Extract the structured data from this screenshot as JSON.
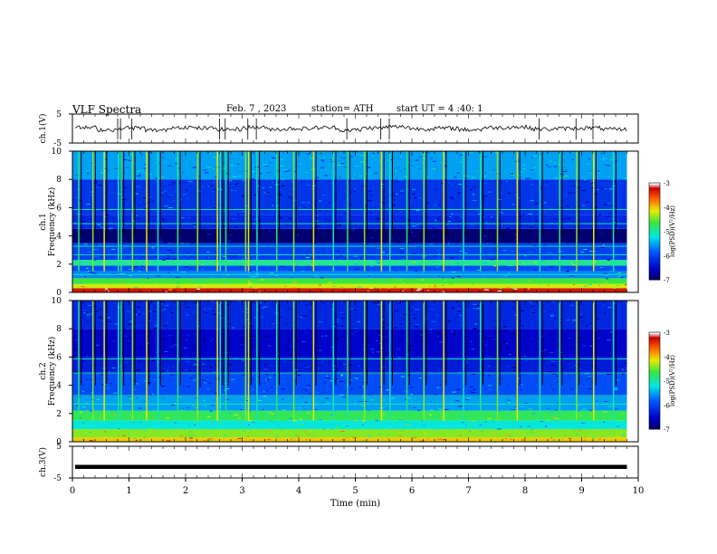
{
  "header": {
    "title": "VLF Spectra",
    "date": "Feb. 7 , 2023",
    "station": "station= ATH",
    "start": "start UT = 4 :40: 1"
  },
  "chart_data": [
    {
      "type": "line",
      "ylabel": "ch.1(V)",
      "ylim": [
        -5,
        5
      ],
      "yticks": [
        "5",
        "-5"
      ],
      "xlim": [
        0,
        10
      ],
      "series": [
        {
          "values": [
            0.3,
            -0.4,
            0.2,
            -0.6,
            0.5,
            0.1,
            -0.3,
            0.4,
            -0.2,
            0.0,
            0.3,
            -0.5,
            0.2,
            0.6,
            -0.1,
            0.1,
            -0.4,
            0.3,
            0.5,
            -0.2,
            0.0,
            0.2,
            -0.3,
            0.4
          ]
        }
      ],
      "spike_times_min": [
        0.8,
        0.85,
        1.05,
        2.6,
        2.7,
        3.1,
        3.25,
        4.85,
        5.45,
        5.6,
        8.25,
        8.9,
        9.2
      ]
    },
    {
      "type": "heatmap",
      "ylabel": "ch.1\nFrequency (kHz)",
      "ylim": [
        0,
        10
      ],
      "yticks": [
        "0",
        "2",
        "4",
        "6",
        "8",
        "10"
      ],
      "xlim": [
        0,
        10
      ],
      "data_end_min": 9.8,
      "colorbar": {
        "label": "log(PSD)(V²/Hz)",
        "ticks": [
          "-3",
          "-4",
          "-5",
          "-6",
          "-7"
        ],
        "range": [
          -7,
          -3
        ]
      },
      "band_levels": [
        {
          "f": [
            0.0,
            0.3
          ],
          "level": -3.3
        },
        {
          "f": [
            0.3,
            0.6
          ],
          "level": -4.2
        },
        {
          "f": [
            0.6,
            1.0
          ],
          "level": -4.6
        },
        {
          "f": [
            1.0,
            1.5
          ],
          "level": -5.6
        },
        {
          "f": [
            1.5,
            1.9
          ],
          "level": -5.9
        },
        {
          "f": [
            1.9,
            2.3
          ],
          "level": -4.9
        },
        {
          "f": [
            2.3,
            3.5
          ],
          "level": -6.0
        },
        {
          "f": [
            3.5,
            4.5
          ],
          "level": -6.9
        },
        {
          "f": [
            4.5,
            5.5
          ],
          "level": -6.2
        },
        {
          "f": [
            5.5,
            8.0
          ],
          "level": -6.1
        },
        {
          "f": [
            8.0,
            10.0
          ],
          "level": -5.5
        }
      ],
      "sferic_times_min": [
        0.1,
        0.35,
        0.55,
        0.8,
        0.85,
        1.05,
        1.3,
        1.5,
        1.85,
        2.2,
        2.55,
        2.6,
        2.7,
        3.05,
        3.1,
        3.25,
        3.6,
        3.9,
        4.25,
        4.6,
        4.85,
        5.15,
        5.45,
        5.6,
        5.9,
        6.2,
        6.55,
        6.9,
        7.2,
        7.5,
        7.85,
        8.25,
        8.6,
        8.9,
        9.2,
        9.55
      ]
    },
    {
      "type": "heatmap",
      "ylabel": "ch.2\nFrequency (kHz)",
      "ylim": [
        0,
        10
      ],
      "yticks": [
        "0",
        "2",
        "4",
        "6",
        "8",
        "10"
      ],
      "xlim": [
        0,
        10
      ],
      "data_end_min": 9.8,
      "colorbar": {
        "label": "log(PSD)(V²/Hz)",
        "ticks": [
          "-3",
          "-4",
          "-5",
          "-6",
          "-7"
        ],
        "range": [
          -7,
          -3
        ]
      },
      "band_levels": [
        {
          "f": [
            0.0,
            0.3
          ],
          "level": -4.0
        },
        {
          "f": [
            0.3,
            0.9
          ],
          "level": -4.4
        },
        {
          "f": [
            0.9,
            1.5
          ],
          "level": -5.2
        },
        {
          "f": [
            1.5,
            2.2
          ],
          "level": -4.7
        },
        {
          "f": [
            2.2,
            3.2
          ],
          "level": -5.5
        },
        {
          "f": [
            3.2,
            4.8
          ],
          "level": -5.9
        },
        {
          "f": [
            4.8,
            6.0
          ],
          "level": -6.3
        },
        {
          "f": [
            6.0,
            8.0
          ],
          "level": -6.5
        },
        {
          "f": [
            8.0,
            10.0
          ],
          "level": -6.2
        }
      ],
      "sferic_times_min": [
        0.1,
        0.35,
        0.55,
        0.8,
        0.85,
        1.05,
        1.3,
        1.5,
        1.85,
        2.2,
        2.55,
        2.6,
        2.7,
        3.05,
        3.1,
        3.25,
        3.6,
        3.9,
        4.25,
        4.6,
        4.85,
        5.15,
        5.45,
        5.6,
        5.9,
        6.2,
        6.55,
        6.9,
        7.2,
        7.5,
        7.85,
        8.25,
        8.6,
        8.9,
        9.2,
        9.55
      ]
    },
    {
      "type": "line",
      "ylabel": "ch.3(V)",
      "ylim": [
        -5,
        5
      ],
      "yticks": [
        "5",
        "-5"
      ],
      "xlim": [
        0,
        10
      ],
      "xlabel": "Time (min)",
      "xticks": [
        "0",
        "1",
        "2",
        "3",
        "4",
        "5",
        "6",
        "7",
        "8",
        "9",
        "10"
      ],
      "series": [
        {
          "values": [
            -1.5,
            -1.5
          ]
        }
      ]
    }
  ],
  "colors": {
    "line": "#000000",
    "frame": "#000000"
  }
}
